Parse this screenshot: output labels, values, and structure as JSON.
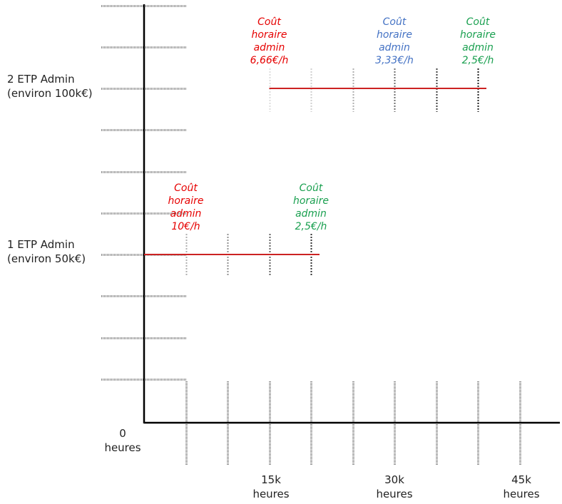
{
  "chart_data": {
    "type": "line",
    "x_unit": "heures",
    "origin_label": {
      "value": "0",
      "unit": "heures"
    },
    "x_tick_labels": [
      {
        "x": 15000,
        "value": "15k",
        "unit": "heures"
      },
      {
        "x": 30000,
        "value": "30k",
        "unit": "heures"
      },
      {
        "x": 45000,
        "value": "45k",
        "unit": "heures"
      }
    ],
    "y_tick_labels": [
      {
        "y": 1,
        "line1": "1 ETP Admin",
        "line2": "(environ 50k€)"
      },
      {
        "y": 2,
        "line1": "2 ETP Admin",
        "line2": "(environ 100k€)"
      }
    ],
    "xlim": [
      0,
      50000
    ],
    "ylim": [
      0,
      2.5
    ],
    "series": [
      {
        "segments": [
          {
            "y": 1,
            "x": [
              0,
              20000
            ]
          },
          {
            "y": 2,
            "x": [
              15000,
              40000
            ]
          }
        ]
      }
    ],
    "annotations": [
      {
        "x": 5000,
        "y": 1,
        "lines": [
          "Coût",
          "horaire",
          "admin",
          "10€/h"
        ],
        "color": "#e60000"
      },
      {
        "x": 20000,
        "y": 1,
        "lines": [
          "Coût",
          "horaire",
          "admin",
          "2,5€/h"
        ],
        "color": "#1aa050"
      },
      {
        "x": 15000,
        "y": 2,
        "lines": [
          "Coût",
          "horaire",
          "admin",
          "6,66€/h"
        ],
        "color": "#e60000"
      },
      {
        "x": 30000,
        "y": 2,
        "lines": [
          "Coût",
          "horaire",
          "admin",
          "3,33€/h"
        ],
        "color": "#4472c4"
      },
      {
        "x": 40000,
        "y": 2,
        "lines": [
          "Coût",
          "horaire",
          "admin",
          "2,5€/h"
        ],
        "color": "#1aa050"
      }
    ],
    "grid": "dashed ticks every 5k heures and every 0.25 ETP",
    "colors": {
      "line": "#cc2222",
      "axis": "#000000",
      "grid": "#888888"
    }
  }
}
